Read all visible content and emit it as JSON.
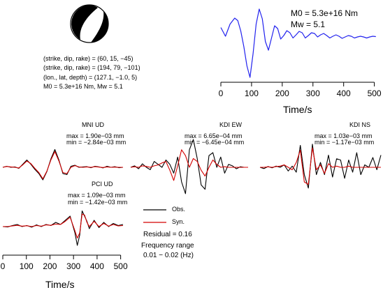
{
  "source": {
    "params": [
      "(strike, dip, rake) = (60, 15, −45)",
      "(strike, dip, rake) = (194, 79, −101)",
      "(lon., lat, depth) = (127.1, −1.0, 5)",
      "M0 =  5.3e+16 Nm, Mw = 5.1"
    ],
    "stf_labels": [
      "M0 =  5.3e+16 Nm",
      "Mw = 5.1"
    ]
  },
  "legend": {
    "obs_label": "Obs.",
    "syn_label": "Syn.",
    "obs_color": "#000000",
    "syn_color": "#d40000"
  },
  "info": {
    "residual": "Residual = 0.16",
    "freq_title": "Frequency range",
    "freq_range": "0.01 − 0.02 (Hz)"
  },
  "chart_data": [
    {
      "type": "line",
      "name": "source-time-function",
      "xlabel": "Time/s",
      "xlim": [
        0,
        510
      ],
      "xticks": [
        0,
        100,
        200,
        300,
        400,
        500
      ],
      "series": [
        {
          "color": "#2222ee",
          "x": [
            0,
            15,
            30,
            45,
            55,
            65,
            75,
            85,
            95,
            105,
            115,
            125,
            135,
            145,
            155,
            165,
            175,
            185,
            195,
            205,
            215,
            225,
            235,
            245,
            255,
            265,
            275,
            285,
            295,
            305,
            315,
            325,
            335,
            345,
            355,
            365,
            375,
            385,
            395,
            405,
            415,
            425,
            435,
            445,
            455,
            465,
            475,
            485,
            495,
            505
          ],
          "y": [
            0.45,
            0.2,
            0.55,
            0.72,
            0.65,
            0.35,
            -0.1,
            -0.65,
            -0.98,
            -0.3,
            0.55,
            0.98,
            0.7,
            0.05,
            -0.2,
            0.15,
            0.5,
            0.42,
            0.12,
            0.22,
            0.36,
            0.3,
            0.15,
            0.24,
            0.34,
            0.3,
            0.15,
            0.22,
            0.3,
            0.28,
            0.18,
            0.24,
            0.28,
            0.22,
            0.15,
            0.2,
            0.24,
            0.2,
            0.14,
            0.18,
            0.22,
            0.2,
            0.15,
            0.18,
            0.2,
            0.18,
            0.15,
            0.18,
            0.2,
            0.19
          ]
        }
      ]
    },
    {
      "type": "line",
      "name": "MNI UD",
      "label": "MNI UD",
      "max_label": "max = 1.90e−03 mm",
      "min_label": "min = −2.84e−03 mm",
      "series": [
        {
          "name": "Obs.",
          "x": [
            0,
            10,
            20,
            30,
            40,
            50,
            60,
            70,
            80,
            90,
            100,
            110,
            120,
            130,
            140,
            150,
            160,
            170,
            180,
            190,
            200,
            210,
            220,
            230,
            240,
            250,
            260,
            270,
            280,
            290,
            300
          ],
          "y": [
            0.0,
            0.05,
            0.0,
            0.02,
            -0.05,
            0.15,
            0.35,
            0.15,
            -0.1,
            -0.3,
            -0.6,
            -0.2,
            0.4,
            0.85,
            0.35,
            -0.3,
            -0.35,
            0.05,
            0.1,
            0.0,
            0.02,
            0.03,
            -0.02,
            0.05,
            0.02,
            -0.03,
            0.05,
            0.0,
            0.03,
            -0.02,
            0.0
          ]
        },
        {
          "name": "Syn.",
          "x": [
            0,
            10,
            20,
            30,
            40,
            50,
            60,
            70,
            80,
            90,
            100,
            110,
            120,
            130,
            140,
            150,
            160,
            170,
            180,
            190,
            200,
            210,
            220,
            230,
            240,
            250,
            260,
            270,
            280,
            290,
            300
          ],
          "y": [
            0.0,
            0.04,
            0.02,
            0.0,
            -0.03,
            0.12,
            0.3,
            0.18,
            -0.05,
            -0.25,
            -0.55,
            -0.18,
            0.35,
            0.75,
            0.3,
            -0.25,
            -0.3,
            0.0,
            0.08,
            0.02,
            0.0,
            0.02,
            0.0,
            0.03,
            0.01,
            -0.01,
            0.02,
            0.0,
            0.01,
            0.0,
            0.0
          ]
        }
      ]
    },
    {
      "type": "line",
      "name": "KDI EW",
      "label": "KDI EW",
      "max_label": "max = 6.65e−04 mm",
      "min_label": "min = −6.45e−04 mm",
      "series": [
        {
          "name": "Obs.",
          "x": [
            0,
            10,
            20,
            30,
            40,
            50,
            60,
            70,
            80,
            90,
            100,
            110,
            120,
            130,
            140,
            150,
            160,
            170,
            180,
            190,
            200,
            210,
            220,
            230,
            240,
            250,
            260,
            270,
            280,
            290,
            300
          ],
          "y": [
            0.0,
            0.05,
            -0.05,
            0.12,
            0.0,
            -0.08,
            0.2,
            0.1,
            0.0,
            0.25,
            0.1,
            -0.2,
            0.35,
            -0.5,
            -0.9,
            0.6,
            0.95,
            0.3,
            -0.6,
            -0.75,
            0.4,
            0.5,
            0.0,
            0.35,
            -0.2,
            0.1,
            0.05,
            -0.05,
            0.02,
            0.0,
            0.0
          ]
        },
        {
          "name": "Syn.",
          "x": [
            0,
            10,
            20,
            30,
            40,
            50,
            60,
            70,
            80,
            90,
            100,
            110,
            120,
            130,
            140,
            150,
            160,
            170,
            180,
            190,
            200,
            210,
            220,
            230,
            240,
            250,
            260,
            270,
            280,
            290,
            300
          ],
          "y": [
            0.0,
            0.02,
            0.0,
            0.05,
            0.03,
            0.0,
            0.05,
            0.08,
            0.15,
            0.2,
            -0.1,
            -0.45,
            0.05,
            0.6,
            0.4,
            0.0,
            0.3,
            0.2,
            -0.1,
            -0.3,
            0.0,
            0.25,
            0.1,
            0.0,
            0.02,
            0.0,
            0.0,
            0.0,
            0.0,
            0.0,
            0.0
          ]
        }
      ]
    },
    {
      "type": "line",
      "name": "KDI NS",
      "label": "KDI NS",
      "max_label": "max = 1.03e−03 mm",
      "min_label": "min = −1.17e−03 mm",
      "series": [
        {
          "name": "Obs.",
          "x": [
            0,
            10,
            20,
            30,
            40,
            50,
            60,
            70,
            80,
            90,
            100,
            110,
            120,
            130,
            140,
            150,
            160,
            170,
            180,
            190,
            200,
            210,
            220,
            230,
            240,
            250,
            260,
            270,
            280,
            290,
            300
          ],
          "y": [
            0.0,
            -0.05,
            0.03,
            -0.02,
            0.05,
            0.0,
            0.1,
            -0.15,
            0.05,
            -0.2,
            0.9,
            -0.3,
            -0.85,
            0.95,
            -0.3,
            0.2,
            -0.3,
            0.5,
            -0.4,
            0.35,
            0.3,
            -0.45,
            0.3,
            -0.2,
            0.6,
            -0.3,
            0.1,
            0.0,
            0.4,
            -0.1,
            0.5
          ]
        },
        {
          "name": "Syn.",
          "x": [
            0,
            10,
            20,
            30,
            40,
            50,
            60,
            70,
            80,
            90,
            100,
            110,
            120,
            130,
            140,
            150,
            160,
            170,
            180,
            190,
            200,
            210,
            220,
            230,
            240,
            250,
            260,
            270,
            280,
            290,
            300
          ],
          "y": [
            0.0,
            0.0,
            0.02,
            0.0,
            0.03,
            0.05,
            0.1,
            0.0,
            -0.1,
            0.2,
            0.7,
            -0.6,
            -0.7,
            0.8,
            -0.1,
            0.1,
            -0.25,
            0.15,
            0.0,
            0.05,
            0.0,
            0.0,
            0.05,
            0.0,
            0.0,
            0.0,
            0.0,
            0.0,
            0.0,
            0.0,
            0.0
          ]
        }
      ]
    },
    {
      "type": "line",
      "name": "PCI UD",
      "label": "PCI UD",
      "max_label": "max = 1.09e−03 mm",
      "min_label": "min = −1.42e−03 mm",
      "xlabel": "Time/s",
      "xlim": [
        0,
        510
      ],
      "xticks": [
        0,
        100,
        200,
        300,
        400,
        500
      ],
      "series": [
        {
          "name": "Obs.",
          "x": [
            0,
            20,
            40,
            60,
            80,
            100,
            120,
            140,
            160,
            180,
            200,
            220,
            240,
            260,
            280,
            300,
            310,
            320,
            330,
            340,
            350,
            360,
            380,
            400,
            420,
            440,
            460,
            480,
            500
          ],
          "y": [
            0.0,
            -0.02,
            0.05,
            0.1,
            0.0,
            0.05,
            -0.03,
            0.08,
            0.0,
            0.1,
            0.05,
            0.2,
            0.1,
            0.3,
            0.5,
            -0.3,
            -0.9,
            -0.4,
            0.75,
            0.5,
            0.25,
            -0.1,
            0.3,
            -0.05,
            0.2,
            0.0,
            0.15,
            0.05,
            0.1
          ]
        },
        {
          "name": "Syn.",
          "x": [
            0,
            20,
            40,
            60,
            80,
            100,
            120,
            140,
            160,
            180,
            200,
            220,
            240,
            260,
            280,
            300,
            310,
            320,
            330,
            340,
            350,
            360,
            380,
            400,
            420,
            440,
            460,
            480,
            500
          ],
          "y": [
            0.0,
            0.0,
            0.03,
            0.06,
            0.02,
            0.04,
            0.0,
            0.05,
            0.02,
            0.08,
            0.06,
            0.12,
            0.1,
            0.25,
            0.45,
            -0.2,
            -0.55,
            -0.3,
            0.6,
            0.55,
            0.2,
            0.0,
            0.25,
            0.0,
            0.15,
            0.02,
            0.1,
            0.03,
            0.05
          ]
        }
      ]
    }
  ]
}
